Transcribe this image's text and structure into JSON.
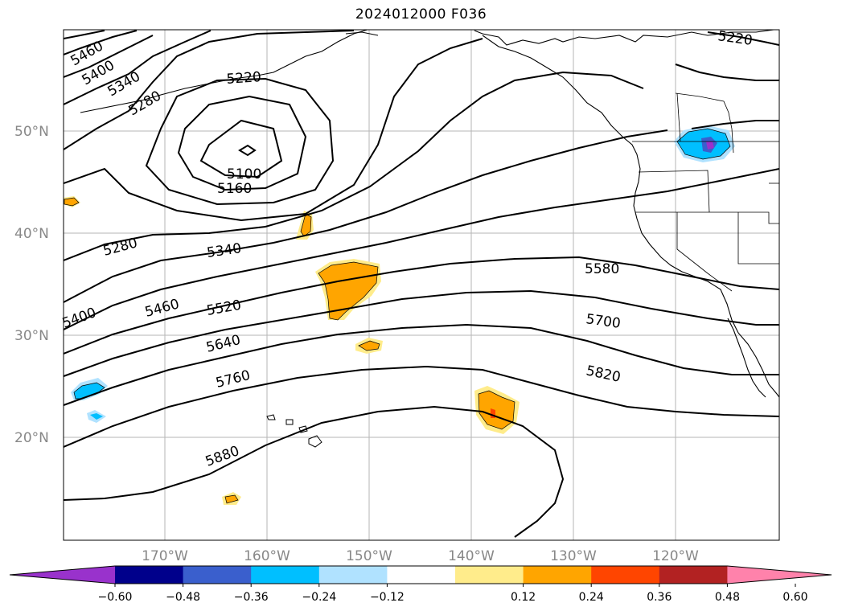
{
  "title": "2024012000 F036",
  "lat_labels": [
    "50°N",
    "40°N",
    "30°N",
    "20°N"
  ],
  "lon_labels": [
    "170°W",
    "160°W",
    "150°W",
    "140°W",
    "130°W",
    "120°W"
  ],
  "contour_labels": [
    "5460",
    "5400",
    "5340",
    "5280",
    "5220",
    "5100",
    "5160",
    "5220",
    "5280",
    "5340",
    "5400",
    "5460",
    "5520",
    "5640",
    "5760",
    "5880",
    "5580",
    "5700",
    "5820"
  ],
  "colorbar": {
    "ticks": [
      "−0.60",
      "−0.48",
      "−0.36",
      "−0.24",
      "−0.12",
      "0.12",
      "0.24",
      "0.36",
      "0.48",
      "0.60"
    ],
    "colors": [
      "#9932cc",
      "#00008b",
      "#3a5fcd",
      "#00bfff",
      "#b0e2ff",
      "#ffffff",
      "#ffec8b",
      "#ffa500",
      "#ff4500",
      "#b22222",
      "#ff82ab"
    ]
  }
}
